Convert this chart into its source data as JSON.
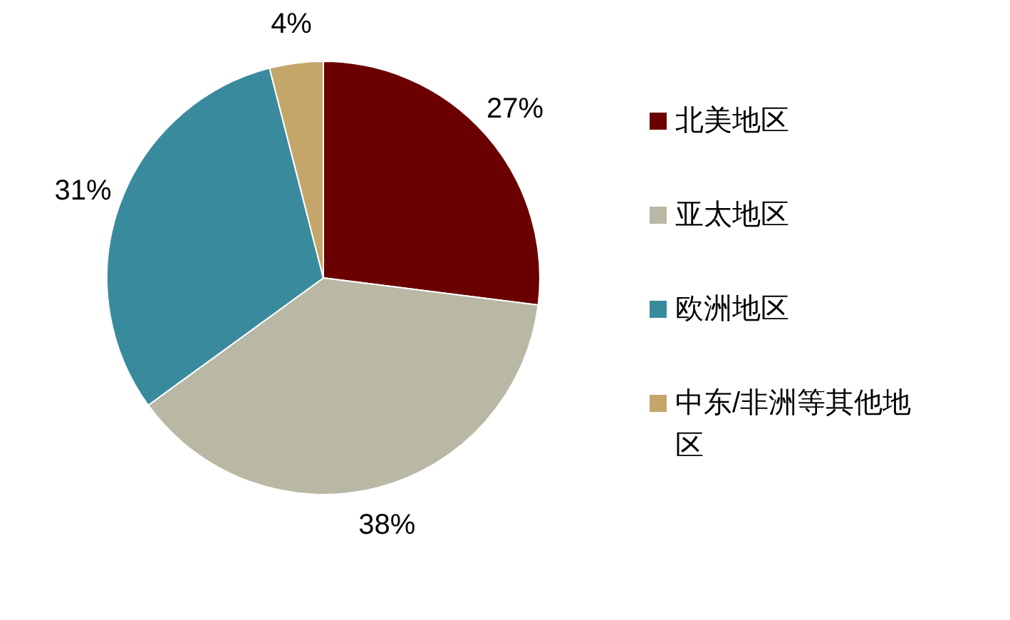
{
  "chart_data": {
    "type": "pie",
    "categories": [
      "北美地区",
      "亚太地区",
      "欧洲地区",
      "中东/非洲等其他地区"
    ],
    "values": [
      27,
      38,
      31,
      4
    ],
    "colors": [
      "#6b0000",
      "#b9b8a5",
      "#3a8a9e",
      "#c4a56a"
    ],
    "value_labels": [
      "27%",
      "38%",
      "31%",
      "4%"
    ],
    "legend": "right"
  }
}
